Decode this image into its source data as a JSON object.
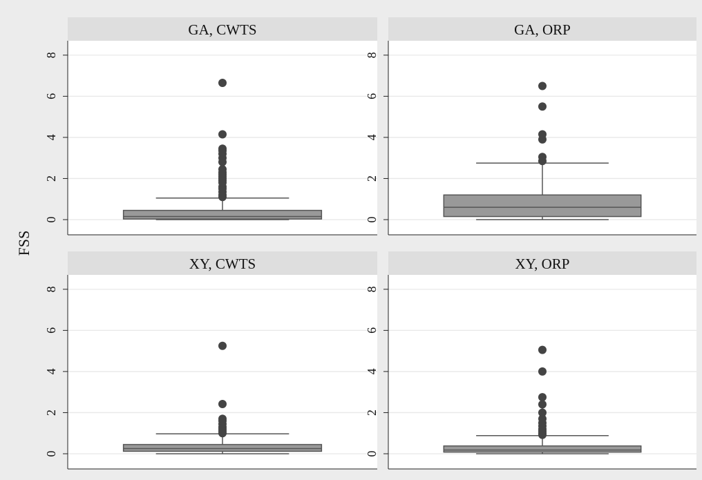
{
  "chart_data": {
    "type": "boxplot",
    "ylabel": "FSS",
    "ylim": [
      0,
      8.7
    ],
    "yticks": [
      0,
      2,
      4,
      6,
      8
    ],
    "grid": true,
    "panels": [
      {
        "title": "GA, CWTS",
        "box": {
          "min": 0,
          "q1": 0.03,
          "median": 0.15,
          "q3": 0.45,
          "max": 1.05
        },
        "outliers": [
          1.1,
          1.2,
          1.35,
          1.5,
          1.6,
          1.8,
          1.9,
          2.0,
          2.1,
          2.2,
          2.3,
          2.45,
          2.8,
          3.0,
          3.2,
          3.35,
          3.45,
          4.15,
          6.65
        ]
      },
      {
        "title": "GA, ORP",
        "box": {
          "min": 0,
          "q1": 0.15,
          "median": 0.6,
          "q3": 1.2,
          "max": 2.75
        },
        "outliers": [
          2.85,
          3.05,
          3.9,
          4.15,
          5.5,
          6.5
        ]
      },
      {
        "title": "XY, CWTS",
        "box": {
          "min": 0,
          "q1": 0.12,
          "median": 0.25,
          "q3": 0.45,
          "max": 0.97
        },
        "outliers": [
          1.0,
          1.1,
          1.2,
          1.3,
          1.45,
          1.6,
          1.7,
          2.42,
          5.25
        ]
      },
      {
        "title": "XY, ORP",
        "box": {
          "min": 0,
          "q1": 0.08,
          "median": 0.18,
          "q3": 0.38,
          "max": 0.88
        },
        "outliers": [
          0.92,
          1.0,
          1.1,
          1.2,
          1.35,
          1.5,
          1.7,
          2.0,
          2.4,
          2.75,
          4.0,
          5.05
        ]
      }
    ]
  }
}
